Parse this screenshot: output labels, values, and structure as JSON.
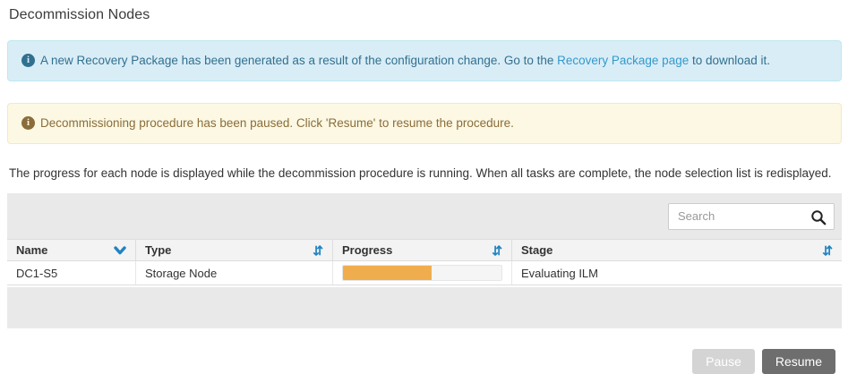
{
  "page": {
    "title": "Decommission Nodes"
  },
  "alerts": {
    "info": {
      "icon_glyph": "i",
      "text_before_link": "A new Recovery Package has been generated as a result of the configuration change. Go to the ",
      "link_text": "Recovery Package page",
      "text_after_link": " to download it."
    },
    "warning": {
      "icon_glyph": "i",
      "text": "Decommissioning procedure has been paused. Click 'Resume' to resume the procedure."
    }
  },
  "description": "The progress for each node is displayed while the decommission procedure is running. When all tasks are complete, the node selection list is redisplayed.",
  "search": {
    "placeholder": "Search"
  },
  "table": {
    "columns": [
      {
        "label": "Name",
        "sort_state": "sorted-descending"
      },
      {
        "label": "Type",
        "sort_state": "sortable"
      },
      {
        "label": "Progress",
        "sort_state": "sortable"
      },
      {
        "label": "Stage",
        "sort_state": "sortable"
      }
    ],
    "rows": [
      {
        "name": "DC1-S5",
        "type": "Storage Node",
        "progress_percent": 56,
        "stage": "Evaluating ILM"
      }
    ]
  },
  "buttons": {
    "pause": "Pause",
    "resume": "Resume"
  },
  "icons": {
    "sort_both_glyph": "⇵"
  },
  "colors": {
    "info_bg": "#d9edf7",
    "info_border": "#bce8f1",
    "info_text": "#31708f",
    "link_blue": "#3399cc",
    "warn_bg": "#fcf8e3",
    "warn_border": "#f2e9c9",
    "warn_text": "#8a6d3b",
    "gray_band": "#e9e9e9",
    "header_bg": "#f3f3f3",
    "border_gray": "#dddddd",
    "sort_blue": "#1f83c2",
    "progress_fill": "#f0ad4e",
    "progress_track": "#f5f5f5",
    "btn_pause": "#d4d4d4",
    "btn_resume": "#6e6e6e",
    "text_main": "#333333"
  }
}
